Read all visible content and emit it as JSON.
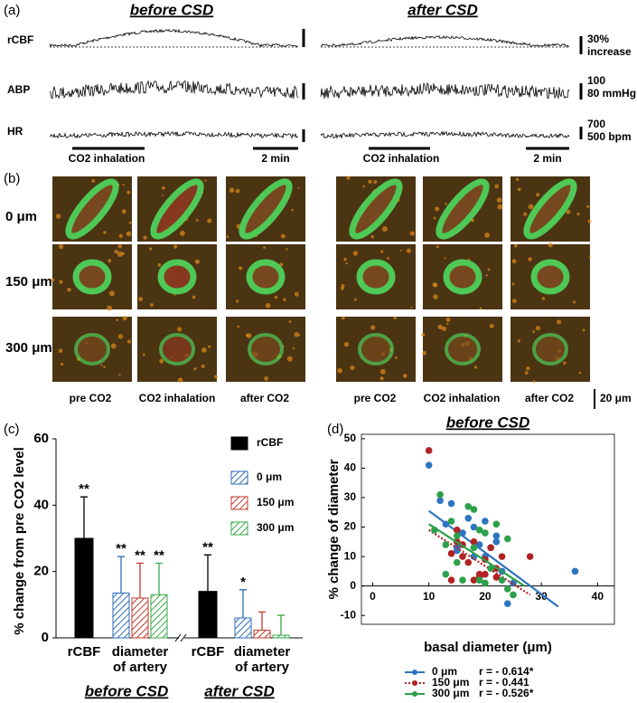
{
  "panel_a": {
    "label": "(a)",
    "before_title": "before CSD",
    "after_title": "after CSD",
    "traces": [
      "rCBF",
      "ABP",
      "HR"
    ],
    "scales": [
      [
        "30%",
        "increase"
      ],
      [
        "100",
        "80 mmHg"
      ],
      [
        "700",
        "500 bpm"
      ]
    ],
    "stimulus": "CO2 inhalation",
    "time_bar": "2 min"
  },
  "panel_b": {
    "label": "(b)",
    "depths": [
      "0 μm",
      "150 μm",
      "300 μm"
    ],
    "columns": [
      "pre CO2",
      "CO2 inhalation",
      "after CO2"
    ],
    "scale_bar": "20 μm"
  },
  "chart_data": [
    {
      "type": "bar",
      "panel_label": "(c)",
      "ylabel": "% change from pre CO2 level",
      "ylim": [
        0,
        60
      ],
      "yticks": [
        0,
        20,
        40,
        60
      ],
      "categories": [
        "rCBF",
        "diameter of artery",
        "rCBF",
        "diameter of artery"
      ],
      "groups": [
        "before CSD",
        "after CSD"
      ],
      "series": [
        {
          "name": "rCBF",
          "color": "#000000",
          "hatch": false,
          "values": [
            30,
            null,
            14,
            null
          ],
          "errors": [
            12.5,
            null,
            11,
            null
          ],
          "annotations": [
            "**",
            null,
            "**",
            null
          ]
        },
        {
          "name": "0 μm",
          "color": "#2e6db4",
          "hatch": true,
          "values": [
            null,
            13.5,
            null,
            6
          ],
          "errors": [
            null,
            11,
            null,
            8.5
          ],
          "annotations": [
            null,
            "**",
            null,
            "*"
          ]
        },
        {
          "name": "150 μm",
          "color": "#c0392b",
          "hatch": true,
          "values": [
            null,
            12,
            null,
            2.3
          ],
          "errors": [
            null,
            10.5,
            null,
            5.5
          ],
          "annotations": [
            null,
            "**",
            null,
            null
          ]
        },
        {
          "name": "300 μm",
          "color": "#3aa84a",
          "hatch": true,
          "values": [
            null,
            13,
            null,
            0.8
          ],
          "errors": [
            null,
            9.5,
            null,
            6
          ],
          "annotations": [
            null,
            "**",
            null,
            null
          ]
        }
      ]
    },
    {
      "type": "scatter",
      "panel_label": "(d)",
      "title": "before CSD",
      "xlabel": "basal diameter  (μm)",
      "ylabel": "% change of diameter",
      "xlim": [
        -2,
        43
      ],
      "ylim": [
        -13,
        51.5
      ],
      "xticks": [
        0,
        10,
        20,
        30,
        40
      ],
      "yticks": [
        -10,
        0,
        10,
        20,
        30,
        40,
        50
      ],
      "series": [
        {
          "name": "0 μm",
          "color": "#2e75c0",
          "line_style": "solid",
          "r_label": "r = - 0.614*",
          "x": [
            10,
            12,
            13,
            14,
            15,
            16,
            17,
            18,
            19,
            20,
            20,
            21,
            22,
            22,
            23,
            24,
            25,
            36,
            15,
            18
          ],
          "y": [
            41,
            29,
            21,
            28,
            13,
            18,
            23,
            20,
            14,
            22,
            10,
            13,
            17,
            15,
            5,
            -6,
            1,
            5,
            12,
            10
          ],
          "fit": {
            "x": [
              10,
              33
            ],
            "y": [
              25.5,
              -7
            ]
          }
        },
        {
          "name": "150 μm",
          "color": "#b22222",
          "line_style": "dotted",
          "r_label": "r = - 0.441",
          "x": [
            10,
            14,
            14,
            15,
            16,
            16,
            17,
            18,
            19,
            20,
            20,
            21,
            22,
            22,
            23,
            28,
            15,
            18,
            19
          ],
          "y": [
            46,
            2,
            11,
            15,
            10,
            14,
            8,
            2,
            4,
            4,
            9,
            13,
            3,
            6,
            10,
            10,
            19,
            15,
            3
          ],
          "fit": {
            "x": [
              10,
              28
            ],
            "y": [
              19,
              -3
            ]
          }
        },
        {
          "name": "300 μm",
          "color": "#2ca04a",
          "line_style": "solid",
          "r_label": "r = - 0.526*",
          "x": [
            11,
            12,
            13,
            14,
            15,
            16,
            17,
            18,
            18,
            19,
            20,
            21,
            22,
            23,
            24,
            24,
            13,
            15,
            19,
            20,
            25
          ],
          "y": [
            19,
            31,
            14,
            22,
            8,
            2,
            27,
            26,
            13,
            19,
            18,
            6,
            21,
            2,
            -1,
            16,
            4,
            17,
            2,
            1,
            -3
          ],
          "fit": {
            "x": [
              10,
              27
            ],
            "y": [
              21,
              0
            ]
          }
        }
      ]
    }
  ]
}
